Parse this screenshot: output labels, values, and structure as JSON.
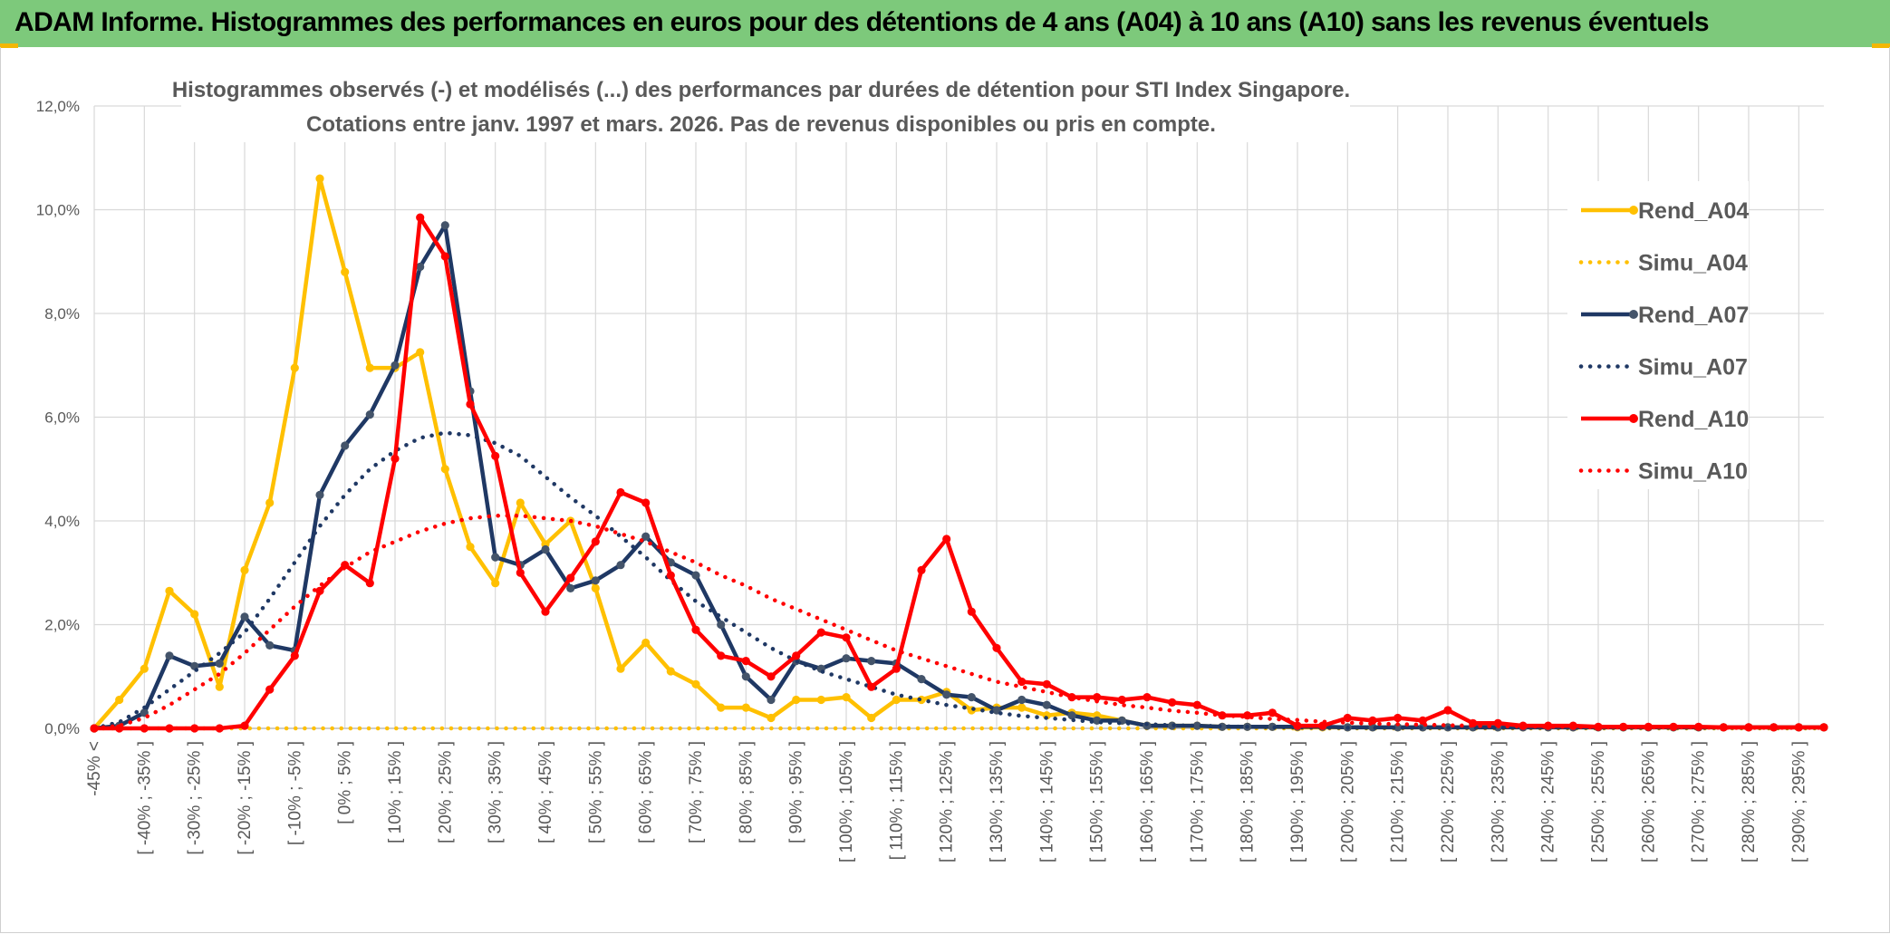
{
  "banner": {
    "title": "ADAM Informe. Histogrammes des performances en euros pour des détentions de 4 ans (A04) à 10 ans (A10) sans les revenus éventuels"
  },
  "colors": {
    "banner_bg": "#7dc97b",
    "rend_a04": "#ffc000",
    "rend_a07": "#1f3864",
    "rend_a10": "#ff0000",
    "grid": "#d9d9d9",
    "text": "#595959"
  },
  "chart_data": {
    "type": "line",
    "title_lines": [
      "Histogrammes observés (-) et modélisés (...) des performances par durées de détention pour STI Index Singapore.",
      "Cotations entre janv. 1997 et mars. 2026. Pas de revenus disponibles ou pris en compte."
    ],
    "xlabel": "",
    "ylabel": "",
    "ylim": [
      0,
      12
    ],
    "y_ticks": [
      "0,0%",
      "2,0%",
      "4,0%",
      "6,0%",
      "8,0%",
      "10,0%",
      "12,0%"
    ],
    "x_tick_labels": [
      "-45% <",
      "[ -40% ; -35% ]",
      "[ -30% ; -25% ]",
      "[ -20% ; -15% ]",
      "[ -10% ; -5% ]",
      "[ 0% ; 5% ]",
      "[ 10% ; 15% ]",
      "[ 20% ; 25% ]",
      "[ 30% ; 35% ]",
      "[ 40% ; 45% ]",
      "[ 50% ; 55% ]",
      "[ 60% ; 65% ]",
      "[ 70% ; 75% ]",
      "[ 80% ; 85% ]",
      "[ 90% ; 95% ]",
      "[ 100% ; 105% ]",
      "[ 110% ; 115% ]",
      "[ 120% ; 125% ]",
      "[ 130% ; 135% ]",
      "[ 140% ; 145% ]",
      "[ 150% ; 155% ]",
      "[ 160% ; 165% ]",
      "[ 170% ; 175% ]",
      "[ 180% ; 185% ]",
      "[ 190% ; 195% ]",
      "[ 200% ; 205% ]",
      "[ 210% ; 215% ]",
      "[ 220% ; 225% ]",
      "[ 230% ; 235% ]",
      "[ 240% ; 245% ]",
      "[ 250% ; 255% ]",
      "[ 260% ; 265% ]",
      "[ 270% ; 275% ]",
      "[ 280% ; 285% ]",
      "[ 290% ; 295% ]"
    ],
    "x_tick_category_index": [
      0,
      2,
      4,
      6,
      8,
      10,
      12,
      14,
      16,
      18,
      20,
      22,
      24,
      26,
      28,
      30,
      32,
      34,
      36,
      38,
      40,
      42,
      44,
      46,
      48,
      50,
      52,
      54,
      56,
      58,
      60,
      62,
      64,
      66,
      68
    ],
    "category_count": 70,
    "legend_position": "right",
    "series": [
      {
        "name": "Rend_A04",
        "style": "solid",
        "color": "#ffc000",
        "values": [
          0,
          0.55,
          1.15,
          2.65,
          2.2,
          0.8,
          3.05,
          4.35,
          6.95,
          10.6,
          8.8,
          6.95,
          6.95,
          7.25,
          5.0,
          3.5,
          2.8,
          4.35,
          3.55,
          4.0,
          2.7,
          1.15,
          1.65,
          1.1,
          0.85,
          0.4,
          0.4,
          0.2,
          0.55,
          0.55,
          0.6,
          0.2,
          0.55,
          0.55,
          0.7,
          0.35,
          0.4,
          0.4,
          0.25,
          0.3,
          0.25,
          0.15,
          0.05,
          0.05,
          0.05,
          0.03,
          0.03,
          0.03,
          0.02,
          0.02,
          0.02,
          0.02,
          0.02,
          0.02,
          0.02,
          0.02,
          0.02,
          0.02,
          0.02,
          0.02,
          0.02,
          0.02,
          0.02,
          0.02,
          0.02,
          0.02,
          0.02,
          0.02,
          0.02,
          0.02
        ]
      },
      {
        "name": "Simu_A04",
        "style": "dotted",
        "color": "#ffc000",
        "values": [
          0,
          0,
          0,
          0,
          0,
          0,
          0,
          0,
          0,
          0,
          0,
          0,
          0,
          0,
          0,
          0,
          0,
          0,
          0,
          0,
          0,
          0,
          0,
          0,
          0,
          0,
          0,
          0,
          0,
          0,
          0,
          0,
          0,
          0,
          0,
          0,
          0,
          0,
          0,
          0,
          0,
          0,
          0,
          0,
          0,
          0,
          0,
          0,
          0,
          0,
          0,
          0,
          0,
          0,
          0,
          0,
          0,
          0,
          0,
          0,
          0,
          0,
          0,
          0,
          0,
          0,
          0,
          0,
          0,
          0
        ]
      },
      {
        "name": "Rend_A07",
        "style": "solid",
        "color": "#1f3864",
        "values": [
          0,
          0.05,
          0.3,
          1.4,
          1.2,
          1.25,
          2.15,
          1.6,
          1.5,
          4.5,
          5.45,
          6.05,
          7.0,
          8.9,
          9.7,
          6.5,
          3.3,
          3.15,
          3.45,
          2.7,
          2.85,
          3.15,
          3.7,
          3.2,
          2.95,
          2.0,
          1.0,
          0.55,
          1.3,
          1.15,
          1.35,
          1.3,
          1.25,
          0.95,
          0.65,
          0.6,
          0.35,
          0.55,
          0.45,
          0.25,
          0.15,
          0.15,
          0.05,
          0.05,
          0.05,
          0.03,
          0.03,
          0.03,
          0.03,
          0.03,
          0.02,
          0.02,
          0.02,
          0.02,
          0.02,
          0.02,
          0.02,
          0.02,
          0.02,
          0.02,
          0.02,
          0.02,
          0.02,
          0.02,
          0.02,
          0.02,
          0.02,
          0.02,
          0.02,
          0.02
        ]
      },
      {
        "name": "Simu_A07",
        "style": "dotted",
        "color": "#1f3864",
        "values": [
          0,
          0.12,
          0.4,
          0.75,
          1.1,
          1.45,
          1.85,
          2.5,
          3.2,
          3.9,
          4.5,
          5.0,
          5.35,
          5.6,
          5.7,
          5.65,
          5.5,
          5.25,
          4.85,
          4.45,
          4.1,
          3.7,
          3.3,
          2.85,
          2.45,
          2.15,
          1.85,
          1.55,
          1.3,
          1.1,
          0.95,
          0.8,
          0.65,
          0.55,
          0.45,
          0.38,
          0.3,
          0.24,
          0.2,
          0.16,
          0.12,
          0.1,
          0.08,
          0.06,
          0.05,
          0.04,
          0.03,
          0.02,
          0.02,
          0.01,
          0.01,
          0.01,
          0.01,
          0.01,
          0.01,
          0.01,
          0.01,
          0.01,
          0.01,
          0.01,
          0.01,
          0.01,
          0.01,
          0.01,
          0.01,
          0.01,
          0.01,
          0.01,
          0.01,
          0.01
        ]
      },
      {
        "name": "Rend_A10",
        "style": "solid",
        "color": "#ff0000",
        "values": [
          0,
          0,
          0,
          0,
          0,
          0,
          0.05,
          0.75,
          1.4,
          2.65,
          3.15,
          2.8,
          5.2,
          9.85,
          9.1,
          6.25,
          5.25,
          3.0,
          2.25,
          2.9,
          3.6,
          4.55,
          4.35,
          2.95,
          1.9,
          1.4,
          1.3,
          1.0,
          1.4,
          1.85,
          1.75,
          0.8,
          1.15,
          3.05,
          3.65,
          2.25,
          1.55,
          0.9,
          0.85,
          0.6,
          0.6,
          0.55,
          0.6,
          0.5,
          0.45,
          0.25,
          0.25,
          0.3,
          0.05,
          0.05,
          0.2,
          0.15,
          0.2,
          0.15,
          0.35,
          0.1,
          0.1,
          0.05,
          0.05,
          0.05,
          0.03,
          0.03,
          0.03,
          0.03,
          0.03,
          0.02,
          0.02,
          0.02,
          0.02,
          0.02
        ]
      },
      {
        "name": "Simu_A10",
        "style": "dotted",
        "color": "#ff0000",
        "values": [
          0,
          0.05,
          0.2,
          0.45,
          0.75,
          1.05,
          1.45,
          1.9,
          2.35,
          2.75,
          3.1,
          3.4,
          3.6,
          3.8,
          3.95,
          4.05,
          4.1,
          4.1,
          4.05,
          4.0,
          3.9,
          3.75,
          3.6,
          3.4,
          3.2,
          2.95,
          2.75,
          2.5,
          2.3,
          2.1,
          1.9,
          1.7,
          1.5,
          1.35,
          1.2,
          1.05,
          0.9,
          0.8,
          0.7,
          0.6,
          0.52,
          0.45,
          0.4,
          0.34,
          0.3,
          0.25,
          0.22,
          0.18,
          0.16,
          0.13,
          0.11,
          0.09,
          0.08,
          0.07,
          0.06,
          0.05,
          0.04,
          0.04,
          0.03,
          0.03,
          0.02,
          0.02,
          0.02,
          0.02,
          0.02,
          0.01,
          0.01,
          0.01,
          0.01,
          0.01
        ]
      }
    ]
  }
}
